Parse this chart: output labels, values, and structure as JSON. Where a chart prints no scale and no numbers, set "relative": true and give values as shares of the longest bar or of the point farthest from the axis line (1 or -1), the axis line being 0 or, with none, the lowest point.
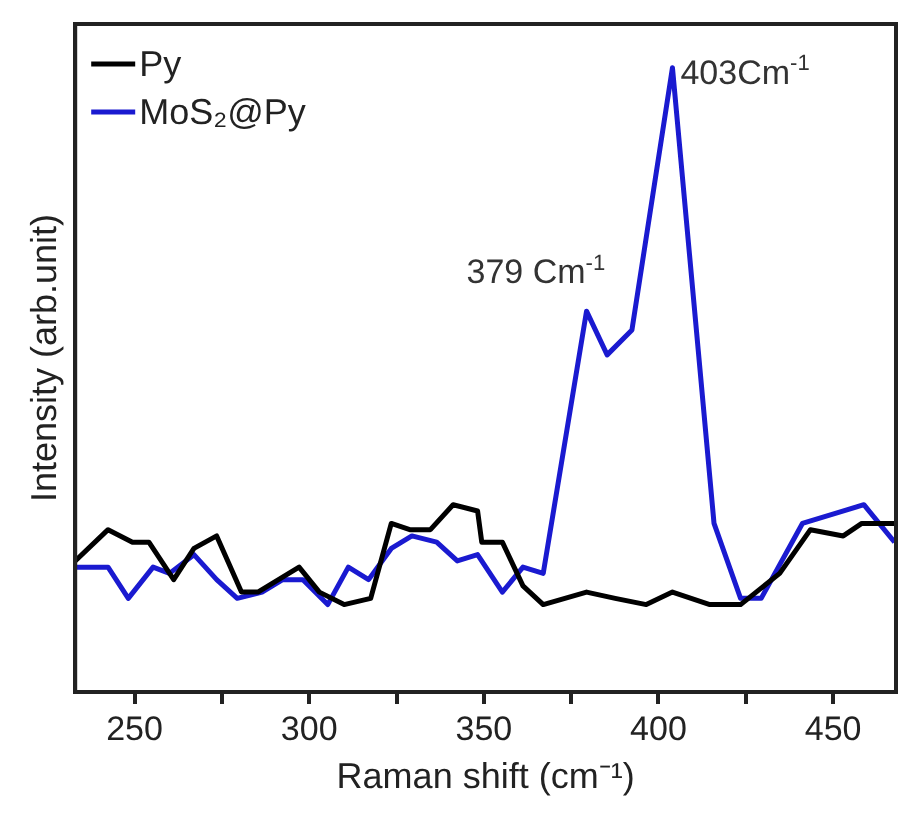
{
  "chart_data": {
    "type": "line",
    "xlabel": "Raman shift (cm⁻¹)",
    "ylabel": "Intensity (arb.unit)",
    "relative": true,
    "legend": "top left",
    "marker": "none",
    "line_style": "solid",
    "grid": false,
    "xlim": [
      233,
      468
    ],
    "xticks": [
      250,
      {
        "value": 275,
        "label": null
      },
      300,
      {
        "value": 325,
        "label": null
      },
      350,
      {
        "value": 375,
        "label": null
      },
      400,
      {
        "value": 425,
        "label": null
      },
      450
    ],
    "series": [
      {
        "name": "Py",
        "color": "#000000",
        "x": [
          233,
          242.4,
          249.4,
          254.1,
          261.2,
          267,
          273.5,
          280.6,
          285.3,
          291.2,
          297.1,
          302.9,
          310,
          317.6,
          323.5,
          328.8,
          334.7,
          341.2,
          348.2,
          349.4,
          355.3,
          361.2,
          367,
          379.4,
          387.6,
          396.5,
          404,
          414.7,
          423.5,
          434.7,
          443.5,
          452.9,
          458.2,
          467.6
        ],
        "values": [
          0.21,
          0.26,
          0.24,
          0.24,
          0.18,
          0.23,
          0.25,
          0.16,
          0.16,
          0.18,
          0.2,
          0.16,
          0.14,
          0.15,
          0.27,
          0.26,
          0.26,
          0.3,
          0.29,
          0.24,
          0.24,
          0.17,
          0.14,
          0.16,
          0.15,
          0.14,
          0.16,
          0.14,
          0.14,
          0.19,
          0.26,
          0.25,
          0.27,
          0.27
        ]
      },
      {
        "name": "MoS₂@Py",
        "color": "#1a1ad0",
        "x": [
          233,
          242.4,
          248.2,
          255.3,
          260,
          267,
          273.5,
          279.4,
          286.5,
          292.4,
          298.2,
          305.3,
          311.2,
          317,
          323.5,
          329.4,
          336.5,
          342.4,
          348.2,
          355.3,
          361.2,
          367,
          379.4,
          385.3,
          392.4,
          404,
          415.9,
          423.5,
          429.4,
          441.2,
          458.8,
          467.6
        ],
        "values": [
          0.2,
          0.2,
          0.15,
          0.2,
          0.19,
          0.22,
          0.18,
          0.15,
          0.16,
          0.18,
          0.18,
          0.14,
          0.2,
          0.18,
          0.23,
          0.25,
          0.24,
          0.21,
          0.22,
          0.16,
          0.2,
          0.19,
          0.61,
          0.54,
          0.58,
          1,
          0.27,
          0.15,
          0.15,
          0.27,
          0.3,
          0.24
        ]
      }
    ],
    "annotations": [
      {
        "text": "403Cm$^{-1}$",
        "x": 404,
        "y": 1
      },
      {
        "text": "379 Cm$^{-1}$",
        "x": 379.4,
        "y": 0.61
      }
    ]
  }
}
